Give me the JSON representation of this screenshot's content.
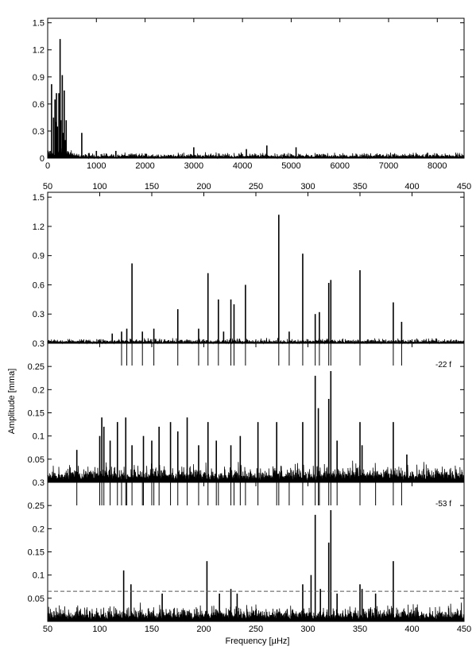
{
  "colors": {
    "ink": "#000000",
    "background": "#ffffff",
    "threshold": "#555555"
  },
  "chart_data": [
    {
      "type": "line",
      "panel": "full-spectrum",
      "xlim": [
        0,
        8550
      ],
      "ylim": [
        0,
        1.55
      ],
      "x_ticks": [
        0,
        1000,
        2000,
        3000,
        4000,
        5000,
        6000,
        7000,
        8000
      ],
      "x_tick_labels": [
        "0",
        "1000",
        "2000",
        "3000",
        "4000",
        "5000",
        "6000",
        "7000",
        "8000"
      ],
      "y_ticks": [
        0,
        0.3,
        0.6,
        0.9,
        1.2,
        1.5
      ],
      "y_tick_labels": [
        "0",
        "0.3",
        "0.6",
        "0.9",
        "1.2",
        "1.5"
      ],
      "peaks": [
        [
          80,
          0.82
        ],
        [
          120,
          0.45
        ],
        [
          150,
          0.65
        ],
        [
          170,
          0.4
        ],
        [
          180,
          0.72
        ],
        [
          200,
          0.35
        ],
        [
          230,
          0.72
        ],
        [
          255,
          1.32
        ],
        [
          270,
          0.42
        ],
        [
          300,
          0.92
        ],
        [
          320,
          0.28
        ],
        [
          340,
          0.75
        ],
        [
          355,
          0.2
        ],
        [
          380,
          0.42
        ],
        [
          700,
          0.28
        ],
        [
          1000,
          0.08
        ],
        [
          1400,
          0.08
        ],
        [
          3000,
          0.12
        ],
        [
          4080,
          0.1
        ],
        [
          4500,
          0.14
        ],
        [
          5100,
          0.12
        ],
        [
          7800,
          0.06
        ]
      ],
      "noise_level": 0.03
    },
    {
      "type": "line",
      "panel": "zoom-original",
      "xlim": [
        50,
        450
      ],
      "ylim": [
        0,
        1.55
      ],
      "x_ticks": [
        50,
        100,
        150,
        200,
        250,
        300,
        350,
        400,
        450
      ],
      "x_tick_labels": [
        "50",
        "100",
        "150",
        "200",
        "250",
        "300",
        "350",
        "400",
        "450"
      ],
      "y_ticks": [
        0.3,
        0.6,
        0.9,
        1.2,
        1.5
      ],
      "y_tick_labels": [
        "0.3",
        "0.6",
        "0.9",
        "1.2",
        "1.5"
      ],
      "peaks": [
        [
          112,
          0.1
        ],
        [
          121,
          0.12
        ],
        [
          126,
          0.15
        ],
        [
          131,
          0.82
        ],
        [
          141,
          0.12
        ],
        [
          152,
          0.15
        ],
        [
          175,
          0.35
        ],
        [
          195,
          0.15
        ],
        [
          204,
          0.72
        ],
        [
          214,
          0.45
        ],
        [
          219,
          0.12
        ],
        [
          226,
          0.45
        ],
        [
          229,
          0.4
        ],
        [
          240,
          0.6
        ],
        [
          272,
          1.32
        ],
        [
          282,
          0.12
        ],
        [
          295,
          0.92
        ],
        [
          307,
          0.3
        ],
        [
          311,
          0.32
        ],
        [
          320,
          0.62
        ],
        [
          322,
          0.65
        ],
        [
          350,
          0.75
        ],
        [
          382,
          0.42
        ],
        [
          390,
          0.22
        ]
      ],
      "noise_level": 0.025
    },
    {
      "type": "line",
      "panel": "prewhitened-22f",
      "annotation": "-22 f",
      "xlim": [
        50,
        450
      ],
      "ylim": [
        0,
        0.3
      ],
      "y_ticks": [
        0.05,
        0.1,
        0.15,
        0.2,
        0.25,
        0.3
      ],
      "y_tick_labels": [
        "0.05",
        "0.1",
        "0.15",
        "0.2",
        "0.25",
        "0.3"
      ],
      "removed_frequencies": [
        121,
        126,
        131,
        141,
        152,
        175,
        195,
        204,
        214,
        226,
        229,
        240,
        272,
        282,
        295,
        307,
        311,
        320,
        322,
        350,
        382,
        390
      ],
      "peaks": [
        [
          78,
          0.07
        ],
        [
          100,
          0.1
        ],
        [
          102,
          0.14
        ],
        [
          104,
          0.12
        ],
        [
          110,
          0.09
        ],
        [
          117,
          0.13
        ],
        [
          125,
          0.14
        ],
        [
          131,
          0.08
        ],
        [
          142,
          0.1
        ],
        [
          150,
          0.09
        ],
        [
          157,
          0.12
        ],
        [
          168,
          0.13
        ],
        [
          175,
          0.11
        ],
        [
          184,
          0.14
        ],
        [
          195,
          0.08
        ],
        [
          204,
          0.13
        ],
        [
          212,
          0.09
        ],
        [
          226,
          0.08
        ],
        [
          235,
          0.1
        ],
        [
          252,
          0.13
        ],
        [
          270,
          0.13
        ],
        [
          295,
          0.13
        ],
        [
          307,
          0.23
        ],
        [
          310,
          0.16
        ],
        [
          320,
          0.18
        ],
        [
          322,
          0.24
        ],
        [
          328,
          0.09
        ],
        [
          350,
          0.13
        ],
        [
          352,
          0.08
        ],
        [
          382,
          0.13
        ],
        [
          395,
          0.06
        ]
      ],
      "noise_level": 0.02
    },
    {
      "type": "line",
      "panel": "prewhitened-53f",
      "annotation": "-53 f",
      "xlim": [
        50,
        450
      ],
      "ylim": [
        0,
        0.3
      ],
      "xlabel": "Frequency [µHz]",
      "x_ticks": [
        50,
        100,
        150,
        200,
        250,
        300,
        350,
        400,
        450
      ],
      "x_tick_labels": [
        "50",
        "100",
        "150",
        "200",
        "250",
        "300",
        "350",
        "400",
        "450"
      ],
      "y_ticks": [
        0.05,
        0.1,
        0.15,
        0.2,
        0.25,
        0.3
      ],
      "y_tick_labels": [
        "0.05",
        "0.1",
        "0.15",
        "0.2",
        "0.25",
        "0.3"
      ],
      "threshold": 0.065,
      "removed_frequencies": [
        78,
        100,
        102,
        104,
        110,
        117,
        121,
        125,
        126,
        131,
        141,
        142,
        150,
        152,
        157,
        168,
        175,
        184,
        195,
        204,
        212,
        214,
        226,
        229,
        235,
        240,
        252,
        270,
        272,
        282,
        295,
        307,
        310,
        311,
        320,
        322,
        328,
        350,
        365,
        382,
        390
      ],
      "peaks": [
        [
          123,
          0.11
        ],
        [
          130,
          0.08
        ],
        [
          160,
          0.06
        ],
        [
          203,
          0.13
        ],
        [
          215,
          0.06
        ],
        [
          226,
          0.07
        ],
        [
          232,
          0.06
        ],
        [
          295,
          0.08
        ],
        [
          303,
          0.1
        ],
        [
          307,
          0.23
        ],
        [
          312,
          0.07
        ],
        [
          320,
          0.17
        ],
        [
          322,
          0.24
        ],
        [
          328,
          0.06
        ],
        [
          350,
          0.08
        ],
        [
          352,
          0.07
        ],
        [
          365,
          0.06
        ],
        [
          382,
          0.13
        ]
      ],
      "noise_level": 0.018
    }
  ],
  "ylabel": "Amplitude   [mma]"
}
